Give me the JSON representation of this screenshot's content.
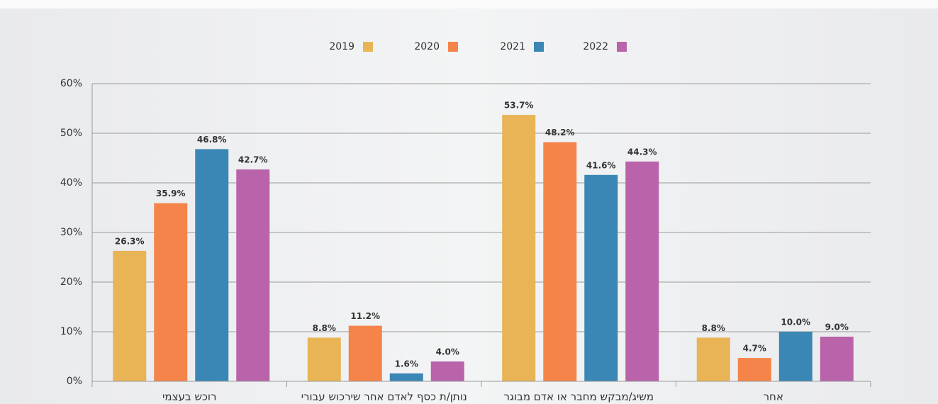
{
  "chart_data": {
    "type": "bar",
    "categories": [
      "רוכש בעצמי",
      "נותן/ת כסף לאדם אחר שירכוש עבורי",
      "משיג/מבקש מחבר או אדם מבוגר",
      "אחר"
    ],
    "series": [
      {
        "name": "2019",
        "color": "#e8b455",
        "values": [
          26.3,
          8.8,
          53.7,
          8.8
        ],
        "value_labels": [
          "26.3%",
          "8.8%",
          "53.7%",
          "8.8%"
        ]
      },
      {
        "name": "2020",
        "color": "#f4844a",
        "values": [
          35.9,
          11.2,
          48.2,
          4.7
        ],
        "value_labels": [
          "35.9%",
          "11.2%",
          "48.2%",
          "4.7%"
        ]
      },
      {
        "name": "2021",
        "color": "#3a87b5",
        "values": [
          46.8,
          1.6,
          41.6,
          10.0
        ],
        "value_labels": [
          "46.8%",
          "1.6%",
          "41.6%",
          "10.0%"
        ]
      },
      {
        "name": "2022",
        "color": "#b963aa",
        "values": [
          42.7,
          4.0,
          44.3,
          9.0
        ],
        "value_labels": [
          "42.7%",
          "4.0%",
          "44.3%",
          "9.0%"
        ]
      }
    ],
    "ylim": [
      0,
      60
    ],
    "yticks": [
      {
        "value": 0,
        "label": "0%"
      },
      {
        "value": 10,
        "label": "10%"
      },
      {
        "value": 20,
        "label": "20%"
      },
      {
        "value": 30,
        "label": "30%"
      },
      {
        "value": 40,
        "label": "40%"
      },
      {
        "value": 50,
        "label": "50%"
      },
      {
        "value": 60,
        "label": "60%"
      }
    ],
    "grid": true,
    "legend": "top"
  }
}
